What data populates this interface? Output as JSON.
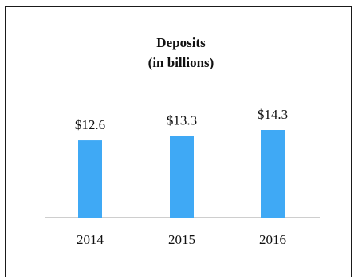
{
  "chart_data": {
    "type": "bar",
    "title": "Deposits",
    "subtitle": "(in billions)",
    "categories": [
      "2014",
      "2015",
      "2016"
    ],
    "values": [
      12.6,
      13.3,
      14.3
    ],
    "data_labels": [
      "$12.6",
      "$13.3",
      "$14.3"
    ],
    "xlabel": "",
    "ylabel": "",
    "ylim": [
      0,
      14.3
    ],
    "grid": false,
    "legend": "none",
    "bar_color": "#3fa9f5",
    "axis_color": "#bdbdbd"
  }
}
